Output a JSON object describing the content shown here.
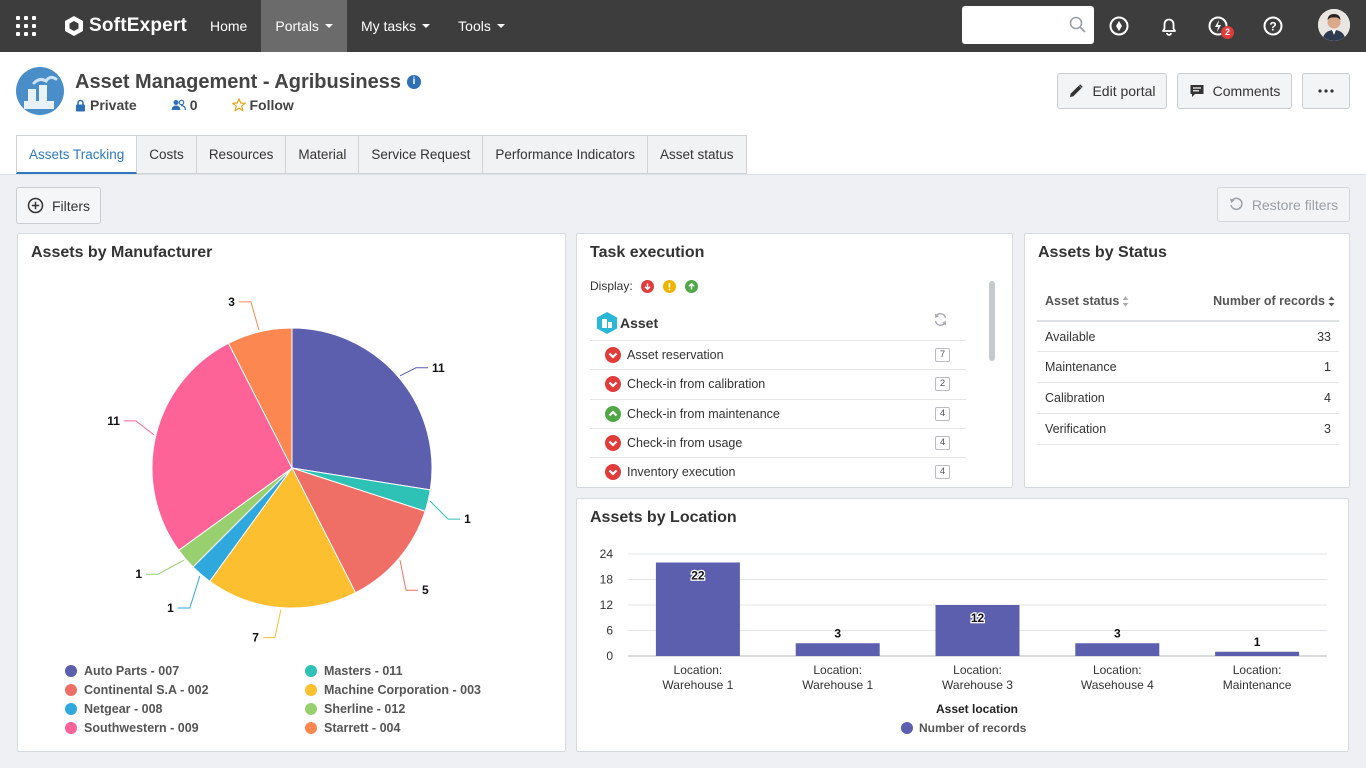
{
  "topbar": {
    "logo": "SoftExpert",
    "nav": [
      {
        "label": "Home",
        "active": false,
        "caret": false
      },
      {
        "label": "Portals",
        "active": true,
        "caret": true
      },
      {
        "label": "My tasks",
        "active": false,
        "caret": true
      },
      {
        "label": "Tools",
        "active": false,
        "caret": true
      }
    ],
    "search_placeholder": "",
    "notifications_badge": "2"
  },
  "header": {
    "title": "Asset Management - Agribusiness",
    "privacy": "Private",
    "members": "0",
    "follow": "Follow",
    "edit_portal": "Edit portal",
    "comments": "Comments"
  },
  "tabs": [
    {
      "label": "Assets Tracking",
      "active": true
    },
    {
      "label": "Costs",
      "active": false
    },
    {
      "label": "Resources",
      "active": false
    },
    {
      "label": "Material",
      "active": false
    },
    {
      "label": "Service Request",
      "active": false
    },
    {
      "label": "Performance Indicators",
      "active": false
    },
    {
      "label": "Asset status",
      "active": false
    }
  ],
  "toolbar": {
    "filters": "Filters",
    "restore_filters": "Restore filters"
  },
  "manufacturer": {
    "title": "Assets by Manufacturer"
  },
  "task_execution": {
    "title": "Task execution",
    "display_label": "Display:",
    "group": "Asset",
    "rows": [
      {
        "label": "Asset reservation",
        "status": "red",
        "count": "7"
      },
      {
        "label": "Check-in from calibration",
        "status": "red",
        "count": "2"
      },
      {
        "label": "Check-in from maintenance",
        "status": "green",
        "count": "4"
      },
      {
        "label": "Check-in from usage",
        "status": "red",
        "count": "4"
      },
      {
        "label": "Inventory execution",
        "status": "red",
        "count": "4"
      }
    ]
  },
  "status_panel": {
    "title": "Assets by Status",
    "col_status": "Asset status",
    "col_count": "Number of records",
    "rows": [
      {
        "status": "Available",
        "count": "33"
      },
      {
        "status": "Maintenance",
        "count": "1"
      },
      {
        "status": "Calibration",
        "count": "4"
      },
      {
        "status": "Verification",
        "count": "3"
      }
    ]
  },
  "location": {
    "title": "Assets by Location"
  },
  "colors": {
    "accent": "#2f77c0",
    "red": "#e23b3b",
    "yellow": "#f0b400",
    "green": "#4fa845",
    "bar": "#5b5fae"
  },
  "chart_data": [
    {
      "type": "pie",
      "title": "Assets by Manufacturer",
      "categories": [
        "Auto Parts - 007",
        "Masters - 011",
        "Continental S.A - 002",
        "Machine Corporation - 003",
        "Netgear - 008",
        "Sherline - 012",
        "Southwestern - 009",
        "Starrett - 004"
      ],
      "values": [
        11,
        1,
        5,
        7,
        1,
        1,
        11,
        3
      ],
      "colors": [
        "#5b5fae",
        "#2ec1b5",
        "#ef6f66",
        "#fbbf2f",
        "#2ea8dd",
        "#98d06f",
        "#fd6396",
        "#fd8751"
      ],
      "legend": "bottom"
    },
    {
      "type": "bar",
      "title": "Assets by Location",
      "categories": [
        "Location: Warehouse 1",
        "Location: Warehouse 1",
        "Location: Warehouse 3",
        "Location: Wasehouse 4",
        "Location: Maintenance"
      ],
      "series": [
        {
          "name": "Number of records",
          "values": [
            22,
            3,
            12,
            3,
            1
          ]
        }
      ],
      "xlabel": "Asset location",
      "ylabel": "",
      "ylim": [
        0,
        24
      ],
      "yticks": [
        0,
        6,
        12,
        18,
        24
      ],
      "grid": true,
      "legend": "bottom"
    }
  ]
}
